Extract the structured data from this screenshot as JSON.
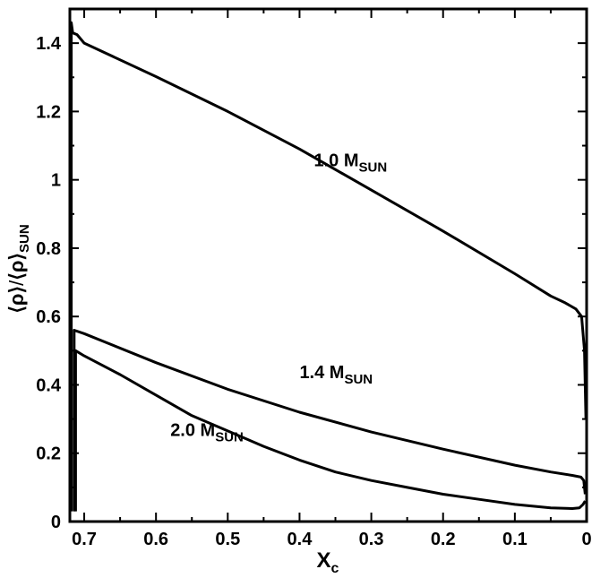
{
  "chart_data": {
    "type": "line",
    "xlabel": "X",
    "xlabel_sub": "c",
    "ylabel_parts": [
      "⟨ρ⟩",
      "/",
      "⟨ρ⟩",
      "SUN"
    ],
    "x_reversed": true,
    "xlim": [
      0.72,
      0.0
    ],
    "ylim": [
      0.0,
      1.5
    ],
    "x_ticks": [
      0.7,
      0.6,
      0.5,
      0.4,
      0.3,
      0.2,
      0.1,
      0.0
    ],
    "x_tick_labels": [
      "0.7",
      "0.6",
      "0.5",
      "0.4",
      "0.3",
      "0.2",
      "0.1",
      "0"
    ],
    "y_ticks": [
      0.0,
      0.2,
      0.4,
      0.6,
      0.8,
      1.0,
      1.2,
      1.4
    ],
    "y_tick_labels": [
      "0",
      "0.2",
      "0.4",
      "0.6",
      "0.8",
      "1",
      "1.2",
      "1.4"
    ],
    "grid": false,
    "legend": "none",
    "series": [
      {
        "label_main": "1.0 M",
        "label_sub": "SUN",
        "label_at": [
          0.38,
          1.04
        ],
        "points": [
          [
            0.718,
            0.03
          ],
          [
            0.718,
            1.46
          ],
          [
            0.716,
            1.43
          ],
          [
            0.71,
            1.425
          ],
          [
            0.7,
            1.4
          ],
          [
            0.6,
            1.302
          ],
          [
            0.5,
            1.2
          ],
          [
            0.4,
            1.09
          ],
          [
            0.3,
            0.97
          ],
          [
            0.2,
            0.85
          ],
          [
            0.1,
            0.725
          ],
          [
            0.05,
            0.66
          ],
          [
            0.03,
            0.64
          ],
          [
            0.015,
            0.622
          ],
          [
            0.007,
            0.6
          ],
          [
            0.003,
            0.5
          ],
          [
            0.001,
            0.3
          ]
        ]
      },
      {
        "label_main": "1.4 M",
        "label_sub": "SUN",
        "label_at": [
          0.4,
          0.42
        ],
        "points": [
          [
            0.714,
            0.03
          ],
          [
            0.714,
            0.56
          ],
          [
            0.7,
            0.55
          ],
          [
            0.6,
            0.465
          ],
          [
            0.5,
            0.387
          ],
          [
            0.4,
            0.32
          ],
          [
            0.3,
            0.262
          ],
          [
            0.2,
            0.212
          ],
          [
            0.1,
            0.165
          ],
          [
            0.05,
            0.145
          ],
          [
            0.02,
            0.135
          ],
          [
            0.008,
            0.13
          ],
          [
            0.004,
            0.12
          ],
          [
            0.002,
            0.08
          ]
        ]
      },
      {
        "label_main": "2.0 M",
        "label_sub": "SUN",
        "label_at": [
          0.58,
          0.25
        ],
        "points": [
          [
            0.712,
            0.03
          ],
          [
            0.712,
            0.5
          ],
          [
            0.7,
            0.485
          ],
          [
            0.65,
            0.43
          ],
          [
            0.6,
            0.37
          ],
          [
            0.55,
            0.31
          ],
          [
            0.5,
            0.265
          ],
          [
            0.45,
            0.22
          ],
          [
            0.4,
            0.18
          ],
          [
            0.35,
            0.145
          ],
          [
            0.3,
            0.12
          ],
          [
            0.25,
            0.1
          ],
          [
            0.2,
            0.08
          ],
          [
            0.15,
            0.065
          ],
          [
            0.1,
            0.05
          ],
          [
            0.05,
            0.04
          ],
          [
            0.02,
            0.038
          ],
          [
            0.01,
            0.04
          ],
          [
            0.005,
            0.05
          ],
          [
            0.002,
            0.06
          ]
        ]
      }
    ]
  }
}
